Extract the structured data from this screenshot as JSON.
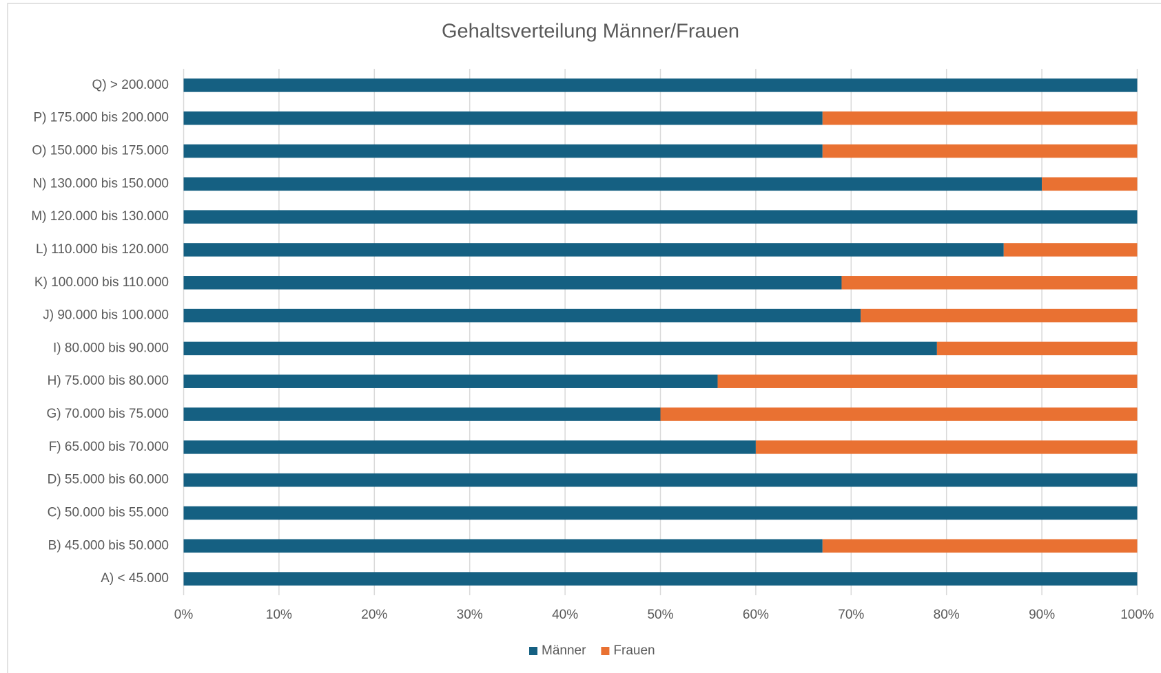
{
  "chart_data": {
    "type": "stacked-bar-horizontal",
    "title": "Gehaltsverteilung Männer/Frauen",
    "categories": [
      "A) < 45.000",
      "B) 45.000 bis 50.000",
      "C) 50.000 bis 55.000",
      "D) 55.000 bis 60.000",
      "F) 65.000 bis 70.000",
      "G) 70.000 bis 75.000",
      "H) 75.000 bis 80.000",
      "I) 80.000 bis 90.000",
      "J) 90.000 bis 100.000",
      "K) 100.000 bis 110.000",
      "L) 110.000 bis 120.000",
      "M) 120.000 bis 130.000",
      "N) 130.000 bis 150.000",
      "O) 150.000 bis 175.000",
      "P) 175.000 bis 200.000",
      "Q) > 200.000"
    ],
    "series": [
      {
        "name": "Männer",
        "color": "#156082",
        "values": [
          100,
          67,
          100,
          100,
          60,
          50,
          56,
          79,
          71,
          69,
          86,
          100,
          90,
          67,
          67,
          100
        ]
      },
      {
        "name": "Frauen",
        "color": "#e97132",
        "values": [
          0,
          33,
          0,
          0,
          40,
          50,
          44,
          21,
          29,
          31,
          14,
          0,
          10,
          33,
          33,
          0
        ]
      }
    ],
    "xlim": [
      0,
      100
    ],
    "xticks": [
      {
        "value": 0,
        "label": "0%"
      },
      {
        "value": 10,
        "label": "10%"
      },
      {
        "value": 20,
        "label": "20%"
      },
      {
        "value": 30,
        "label": "30%"
      },
      {
        "value": 40,
        "label": "40%"
      },
      {
        "value": 50,
        "label": "50%"
      },
      {
        "value": 60,
        "label": "60%"
      },
      {
        "value": 70,
        "label": "70%"
      },
      {
        "value": 80,
        "label": "80%"
      },
      {
        "value": 90,
        "label": "90%"
      },
      {
        "value": 100,
        "label": "100%"
      }
    ],
    "grid": true,
    "legend": "bottom"
  }
}
